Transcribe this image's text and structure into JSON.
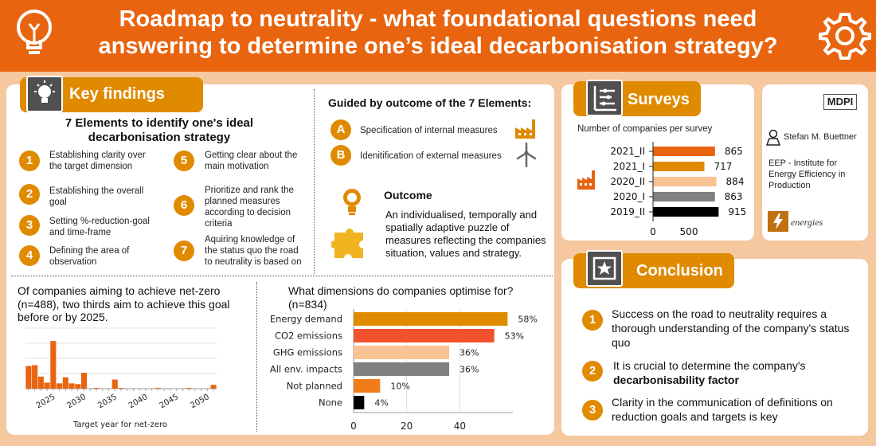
{
  "header": {
    "title_line1": "Roadmap to neutrality -  what foundational questions need",
    "title_line2": "answering to determine one’s ideal decarbonisation strategy?",
    "left_icon": "lightbulb-icon",
    "right_icon": "gear-icon"
  },
  "key_findings": {
    "tab_label": "Key findings",
    "icon": "lightbulb-icon",
    "elements_title_line1": "7 Elements to identify one's ideal",
    "elements_title_line2": "decarbonisation strategy",
    "items": [
      {
        "num": "1",
        "l1": "Establishing clarity over",
        "l2": "the target dimension",
        "l3": "",
        "l4": ""
      },
      {
        "num": "2",
        "l1": "Establishing the overall",
        "l2": "goal",
        "l3": "",
        "l4": ""
      },
      {
        "num": "3",
        "l1": "Setting %-reduction-goal",
        "l2": "and time-frame",
        "l3": "",
        "l4": ""
      },
      {
        "num": "4",
        "l1": "Defining the area of",
        "l2": "observation",
        "l3": "",
        "l4": ""
      },
      {
        "num": "5",
        "l1": "Getting clear about the",
        "l2": "main motivation",
        "l3": "",
        "l4": ""
      },
      {
        "num": "6",
        "l1": "Prioritize and rank the",
        "l2": "planned measures",
        "l3": "according to decision",
        "l4": "criteria"
      },
      {
        "num": "7",
        "l1": "Aquiring knowledge of",
        "l2": "the status quo the road",
        "l3": "to neutrality is based on",
        "l4": ""
      }
    ],
    "guided_title": "Guided by outcome of the 7 Elements:",
    "guided_items": [
      {
        "letter": "A",
        "text": "Specification of internal measures",
        "icon": "factory-icon"
      },
      {
        "letter": "B",
        "text": "Idenitification of external measures",
        "icon": "wind-turbine-icon"
      }
    ],
    "outcome_title": "Outcome",
    "outcome_l1": "An individualised, temporally and",
    "outcome_l2": "spatially adaptive puzzle of",
    "outcome_l3": "measures reflecting the companies",
    "outcome_l4": "situation, values and strategy.",
    "outcome_icons": [
      "lightbulb-icon",
      "puzzle-icon"
    ]
  },
  "netzero": {
    "text_l1": "Of companies aiming to achieve net-zero",
    "text_l2": "(n=488), two thirds aim to achieve this goal",
    "text_l3": "before or by 2025."
  },
  "dimensions": {
    "title_l1": "What dimensions do companies optimise for?",
    "title_l2": "(n=834)"
  },
  "surveys": {
    "tab_label": "Surveys",
    "icon": "list-icon",
    "subtitle": "Number of companies per survey",
    "side_icon": "factory-icon"
  },
  "sidebar": {
    "publisher": "MDPI",
    "author": "Stefan M. Buettner",
    "author_icon": "person-icon",
    "affil_l1": "EEP - Institute for",
    "affil_l2": "Energy Efficiency in",
    "affil_l3": "Production",
    "journal": "energies",
    "journal_icon": "energies-logo-icon"
  },
  "conclusion": {
    "tab_label": "Conclusion",
    "icon": "star-icon",
    "items": [
      {
        "num": "1",
        "l1": "Success on the road to neutrality requires a",
        "l2": "thorough understanding of the company's status",
        "l3": "quo"
      },
      {
        "num": "2",
        "l1": "It is crucial to determine the company's",
        "l2": "decarbonisability factor",
        "l3": ""
      },
      {
        "num": "3",
        "l1": "Clarity in the communication of definitions on",
        "l2": "reduction goals and targets is key",
        "l3": ""
      }
    ]
  },
  "chart_data": [
    {
      "type": "bar",
      "title": "",
      "xlabel": "Target year for net-zero",
      "ylabel": "",
      "x_tick_labels": [
        "2025",
        "2030",
        "2035",
        "2040",
        "2045",
        "2050"
      ],
      "x": [
        2021,
        2022,
        2023,
        2024,
        2025,
        2026,
        2027,
        2028,
        2029,
        2030,
        2031,
        2032,
        2033,
        2034,
        2035,
        2036,
        2037,
        2038,
        2039,
        2040,
        2041,
        2042,
        2043,
        2044,
        2045,
        2046,
        2047,
        2048,
        2049,
        2050,
        2051
      ],
      "values": [
        30,
        31,
        16,
        8,
        63,
        7,
        15,
        7,
        6,
        21,
        0,
        1,
        0,
        0,
        12,
        1,
        0,
        0,
        0,
        0,
        0,
        1,
        0,
        0,
        0,
        0,
        1,
        0,
        0,
        0,
        5
      ],
      "ylim": [
        0,
        80
      ],
      "color": "#e8640f",
      "grid": true
    },
    {
      "type": "bar",
      "orientation": "horizontal",
      "title": "",
      "categories": [
        "Energy demand",
        "CO2 emissions",
        "GHG emissions",
        "All env. impacts",
        "Not planned",
        "None"
      ],
      "values": [
        58,
        53,
        36,
        36,
        10,
        4
      ],
      "value_labels": [
        "58%",
        "53%",
        "36%",
        "36%",
        "10%",
        "4%"
      ],
      "colors": [
        "#e08a00",
        "#f2512d",
        "#f8c293",
        "#808080",
        "#f07d1a",
        "#000000"
      ],
      "x_ticks": [
        "0",
        "20",
        "40"
      ],
      "xlim": [
        0,
        60
      ],
      "grid": true
    },
    {
      "type": "bar",
      "orientation": "horizontal",
      "title": "Number of companies per survey",
      "categories": [
        "2021_II",
        "2021_I",
        "2020_II",
        "2020_I",
        "2019_II"
      ],
      "values": [
        865,
        717,
        884,
        863,
        915
      ],
      "colors": [
        "#e8640f",
        "#e08a00",
        "#f8c293",
        "#808080",
        "#000000"
      ],
      "x_ticks": [
        "0",
        "500"
      ],
      "xlim": [
        0,
        1000
      ]
    }
  ]
}
